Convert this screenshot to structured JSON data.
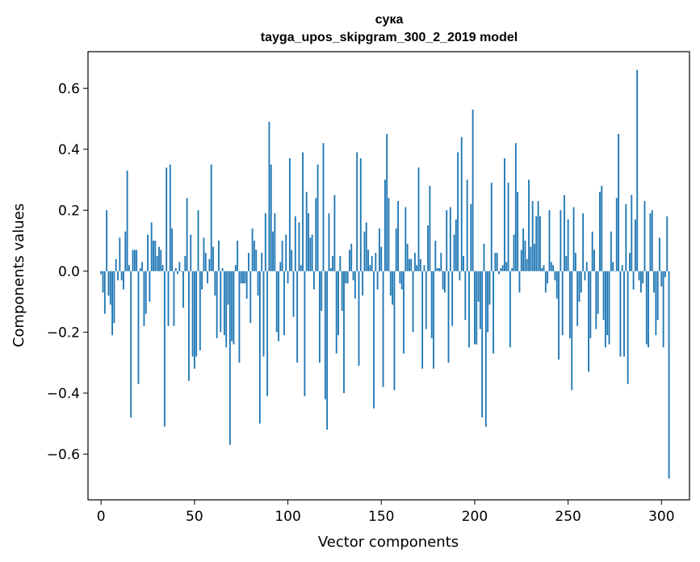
{
  "chart_data": {
    "type": "bar",
    "title": "сука",
    "subtitle": "tayga_upos_skipgram_300_2_2019 model",
    "xlabel": "Vector components",
    "ylabel": "Components values",
    "xlim": [
      -7,
      315
    ],
    "ylim": [
      -0.75,
      0.72
    ],
    "xticks": [
      0,
      50,
      100,
      150,
      200,
      250,
      300
    ],
    "yticks": [
      -0.6,
      -0.4,
      -0.2,
      0.0,
      0.2,
      0.4,
      0.6
    ],
    "ytick_labels": [
      "−0.6",
      "−0.4",
      "−0.2",
      "0.0",
      "0.2",
      "0.4",
      "0.6"
    ],
    "bar_color": "#1f77b4",
    "values": [
      -0.01,
      -0.07,
      -0.14,
      0.2,
      -0.08,
      -0.11,
      -0.21,
      -0.17,
      0.04,
      -0.03,
      0.11,
      -0.03,
      -0.06,
      0.13,
      0.33,
      0.02,
      -0.48,
      0.07,
      0.07,
      0.07,
      -0.37,
      0.01,
      0.03,
      -0.18,
      -0.14,
      0.12,
      -0.1,
      0.16,
      0.1,
      0.1,
      0.05,
      0.08,
      0.07,
      0.02,
      -0.51,
      0.34,
      -0.18,
      0.35,
      0.14,
      -0.18,
      0.01,
      -0.01,
      0.03,
      0.0,
      -0.12,
      0.05,
      0.24,
      -0.36,
      0.12,
      -0.28,
      -0.32,
      -0.28,
      0.2,
      -0.26,
      -0.06,
      0.11,
      0.06,
      -0.04,
      0.04,
      0.35,
      0.08,
      -0.08,
      -0.22,
      0.1,
      -0.2,
      0.01,
      -0.21,
      -0.25,
      -0.11,
      -0.57,
      -0.23,
      -0.24,
      0.02,
      0.1,
      -0.3,
      -0.04,
      -0.04,
      -0.04,
      -0.09,
      0.06,
      -0.17,
      0.14,
      0.1,
      0.07,
      -0.08,
      -0.5,
      0.06,
      -0.28,
      0.19,
      -0.41,
      0.49,
      0.35,
      0.13,
      0.19,
      -0.2,
      -0.23,
      0.03,
      0.1,
      -0.21,
      0.12,
      -0.04,
      0.37,
      0.07,
      -0.15,
      0.18,
      -0.3,
      0.16,
      0.02,
      0.39,
      -0.41,
      0.26,
      0.19,
      0.11,
      0.12,
      -0.06,
      0.24,
      0.35,
      -0.3,
      -0.13,
      0.42,
      -0.42,
      -0.52,
      0.19,
      0.01,
      0.05,
      0.25,
      -0.27,
      -0.21,
      0.05,
      -0.13,
      -0.4,
      -0.04,
      -0.04,
      0.07,
      0.09,
      -0.03,
      -0.09,
      0.39,
      -0.31,
      0.37,
      -0.08,
      0.13,
      0.16,
      0.07,
      0.02,
      0.05,
      -0.45,
      0.06,
      -0.06,
      0.14,
      0.08,
      -0.38,
      0.3,
      0.45,
      0.24,
      -0.08,
      -0.11,
      -0.39,
      0.14,
      0.23,
      -0.04,
      -0.06,
      -0.27,
      0.21,
      0.09,
      0.04,
      0.04,
      -0.2,
      0.06,
      0.02,
      0.34,
      0.04,
      -0.32,
      0.02,
      -0.19,
      0.15,
      0.28,
      -0.22,
      -0.32,
      0.1,
      0.01,
      0.01,
      0.06,
      -0.06,
      -0.07,
      0.2,
      -0.3,
      0.21,
      -0.18,
      0.12,
      0.17,
      0.39,
      -0.03,
      0.44,
      0.05,
      -0.16,
      0.3,
      -0.25,
      0.22,
      0.53,
      -0.24,
      -0.24,
      -0.1,
      -0.19,
      -0.48,
      0.09,
      -0.51,
      -0.2,
      -0.11,
      0.29,
      -0.27,
      0.06,
      0.06,
      -0.01,
      0.01,
      0.02,
      0.37,
      0.03,
      0.29,
      -0.25,
      0.01,
      0.12,
      0.42,
      0.26,
      -0.07,
      0.07,
      0.14,
      0.1,
      0.04,
      0.3,
      0.08,
      0.23,
      0.09,
      0.18,
      0.23,
      0.18,
      0.01,
      0.02,
      -0.07,
      -0.04,
      0.2,
      0.03,
      0.02,
      -0.03,
      -0.09,
      -0.29,
      0.2,
      -0.21,
      0.25,
      0.05,
      0.17,
      -0.22,
      -0.39,
      0.21,
      0.06,
      -0.18,
      -0.1,
      -0.07,
      0.19,
      -0.03,
      0.03,
      -0.33,
      -0.22,
      0.13,
      0.07,
      -0.19,
      -0.14,
      0.26,
      0.28,
      -0.16,
      -0.25,
      -0.21,
      -0.24,
      0.13,
      0.03,
      0.0,
      0.24,
      0.45,
      -0.28,
      0.02,
      -0.28,
      0.22,
      -0.37,
      0.06,
      0.25,
      -0.06,
      0.17,
      0.66,
      -0.03,
      -0.07,
      -0.04,
      0.23,
      -0.24,
      -0.25,
      0.19,
      0.2,
      -0.07,
      -0.21,
      -0.16,
      0.11,
      -0.05,
      -0.25,
      -0.02,
      0.18,
      -0.68
    ]
  }
}
